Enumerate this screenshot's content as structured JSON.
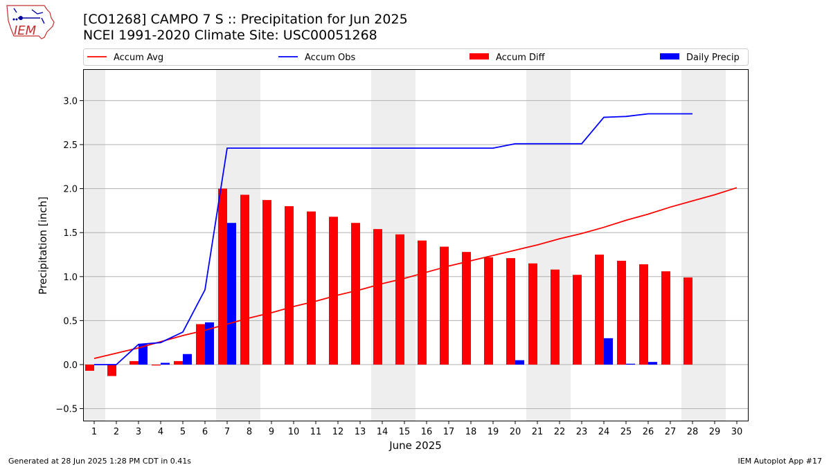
{
  "header": {
    "title_line1": "[CO1268] CAMPO 7 S :: Precipitation for Jun 2025",
    "title_line2": "NCEI 1991-2020 Climate Site: USC00051268",
    "logo_text": "IEM"
  },
  "footer": {
    "generated": "Generated at 28 Jun 2025 1:28 PM CDT in 0.41s",
    "app": "IEM Autoplot App #17"
  },
  "colors": {
    "avg": "#ff0000",
    "obs": "#0000ff",
    "diff": "#ff0000",
    "daily": "#0000ff",
    "weekend_shade": "#eeeeee",
    "grid": "#b0b0b0"
  },
  "chart_data": {
    "type": "bar",
    "xlabel": "June 2025",
    "ylabel": "Precipitation [inch]",
    "ylim": [
      -0.64,
      3.35
    ],
    "yticks": [
      -0.5,
      0.0,
      0.5,
      1.0,
      1.5,
      2.0,
      2.5,
      3.0
    ],
    "ytick_labels": [
      "−0.5",
      "0.0",
      "0.5",
      "1.0",
      "1.5",
      "2.0",
      "2.5",
      "3.0"
    ],
    "grid": "horizontal",
    "legend_position": "top",
    "days": [
      1,
      2,
      3,
      4,
      5,
      6,
      7,
      8,
      9,
      10,
      11,
      12,
      13,
      14,
      15,
      16,
      17,
      18,
      19,
      20,
      21,
      22,
      23,
      24,
      25,
      26,
      27,
      28,
      29,
      30
    ],
    "shaded_days": [
      1,
      7,
      8,
      14,
      15,
      21,
      22,
      28,
      29
    ],
    "series": [
      {
        "name": "Accum Avg",
        "kind": "line",
        "values": [
          0.07,
          0.13,
          0.19,
          0.26,
          0.33,
          0.39,
          0.46,
          0.53,
          0.59,
          0.66,
          0.72,
          0.79,
          0.85,
          0.92,
          0.98,
          1.05,
          1.12,
          1.18,
          1.24,
          1.3,
          1.36,
          1.43,
          1.49,
          1.56,
          1.64,
          1.71,
          1.79,
          1.86,
          1.93,
          2.01
        ]
      },
      {
        "name": "Accum Obs",
        "kind": "line",
        "values": [
          0.0,
          0.0,
          0.23,
          0.25,
          0.37,
          0.85,
          2.46,
          2.46,
          2.46,
          2.46,
          2.46,
          2.46,
          2.46,
          2.46,
          2.46,
          2.46,
          2.46,
          2.46,
          2.46,
          2.51,
          2.51,
          2.51,
          2.51,
          2.81,
          2.82,
          2.85,
          2.85,
          2.85,
          null,
          null
        ]
      },
      {
        "name": "Accum Diff",
        "kind": "bar",
        "values": [
          -0.07,
          -0.13,
          0.04,
          -0.01,
          0.04,
          0.46,
          2.0,
          1.93,
          1.87,
          1.8,
          1.74,
          1.68,
          1.61,
          1.54,
          1.48,
          1.41,
          1.34,
          1.28,
          1.22,
          1.21,
          1.15,
          1.08,
          1.02,
          1.25,
          1.18,
          1.14,
          1.06,
          0.99,
          null,
          null
        ]
      },
      {
        "name": "Daily Precip",
        "kind": "bar",
        "values": [
          0.0,
          0.0,
          0.23,
          0.02,
          0.12,
          0.48,
          1.61,
          0.0,
          0.0,
          0.0,
          0.0,
          0.0,
          0.0,
          0.0,
          0.0,
          0.0,
          0.0,
          0.0,
          0.0,
          0.05,
          0.0,
          0.0,
          0.0,
          0.3,
          0.01,
          0.03,
          0.0,
          0.0,
          null,
          null
        ]
      }
    ]
  }
}
